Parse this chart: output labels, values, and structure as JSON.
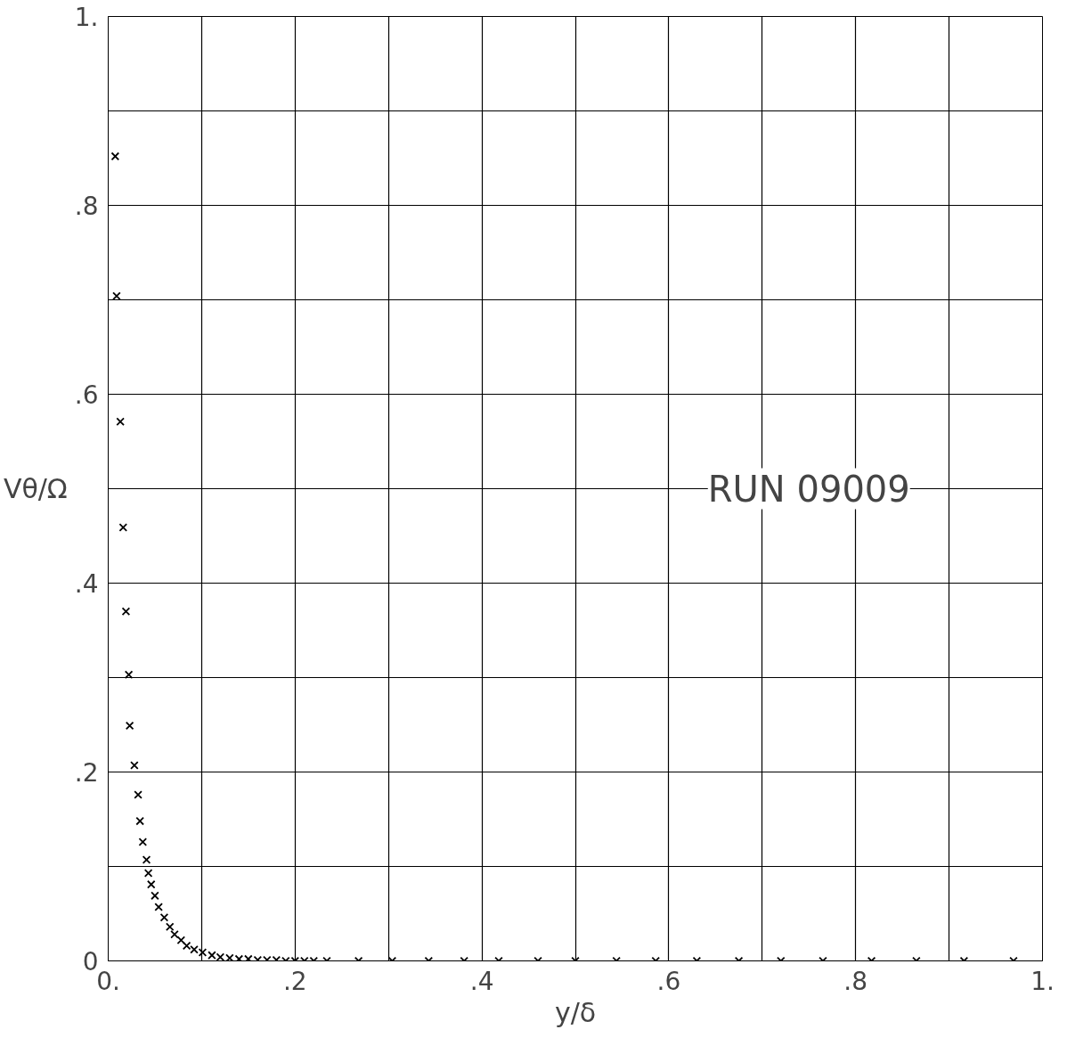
{
  "chart_data": {
    "type": "scatter",
    "xlabel": "y/δ",
    "ylabel": "Vθ/Ω",
    "annotations": [
      "RUN 09009"
    ],
    "x": [
      0.0075,
      0.009,
      0.013,
      0.016,
      0.019,
      0.022,
      0.023,
      0.028,
      0.032,
      0.034,
      0.037,
      0.041,
      0.043,
      0.046,
      0.05,
      0.054,
      0.06,
      0.066,
      0.071,
      0.078,
      0.084,
      0.092,
      0.101,
      0.111,
      0.12,
      0.13,
      0.14,
      0.15,
      0.16,
      0.17,
      0.18,
      0.19,
      0.2,
      0.21,
      0.22,
      0.234,
      0.268,
      0.304,
      0.343,
      0.381,
      0.418,
      0.46,
      0.5,
      0.544,
      0.586,
      0.63,
      0.675,
      0.72,
      0.765,
      0.817,
      0.865,
      0.916,
      0.969
    ],
    "values": [
      0.852,
      0.704,
      0.571,
      0.459,
      0.37,
      0.303,
      0.249,
      0.207,
      0.176,
      0.148,
      0.126,
      0.107,
      0.093,
      0.081,
      0.069,
      0.057,
      0.046,
      0.036,
      0.028,
      0.022,
      0.016,
      0.012,
      0.009,
      0.006,
      0.004,
      0.003,
      0.002,
      0.002,
      0.001,
      0.001,
      0.001,
      0,
      0,
      0,
      0,
      0,
      0,
      0,
      0,
      0,
      0,
      0,
      0,
      0,
      0,
      0,
      0,
      0,
      0,
      0,
      0,
      0,
      0
    ],
    "color": "#000000",
    "marker": "cross",
    "grid": true,
    "xlim": [
      0,
      1
    ],
    "ylim": [
      0,
      1
    ],
    "xticks": [
      {
        "value": 0,
        "label": "0."
      },
      {
        "value": 0.1,
        "label": null
      },
      {
        "value": 0.2,
        "label": ".2"
      },
      {
        "value": 0.3,
        "label": null
      },
      {
        "value": 0.4,
        "label": ".4"
      },
      {
        "value": 0.5,
        "label": null
      },
      {
        "value": 0.6,
        "label": ".6"
      },
      {
        "value": 0.7,
        "label": null
      },
      {
        "value": 0.8,
        "label": ".8"
      },
      {
        "value": 0.9,
        "label": null
      },
      {
        "value": 1,
        "label": "1."
      }
    ],
    "yticks": [
      {
        "value": 0,
        "label": "0"
      },
      {
        "value": 0.1,
        "label": null
      },
      {
        "value": 0.2,
        "label": ".2"
      },
      {
        "value": 0.3,
        "label": null
      },
      {
        "value": 0.4,
        "label": ".4"
      },
      {
        "value": 0.5,
        "label": null
      },
      {
        "value": 0.6,
        "label": ".6"
      },
      {
        "value": 0.7,
        "label": null
      },
      {
        "value": 0.8,
        "label": ".8"
      },
      {
        "value": 0.9,
        "label": null
      },
      {
        "value": 1,
        "label": "1."
      }
    ]
  }
}
